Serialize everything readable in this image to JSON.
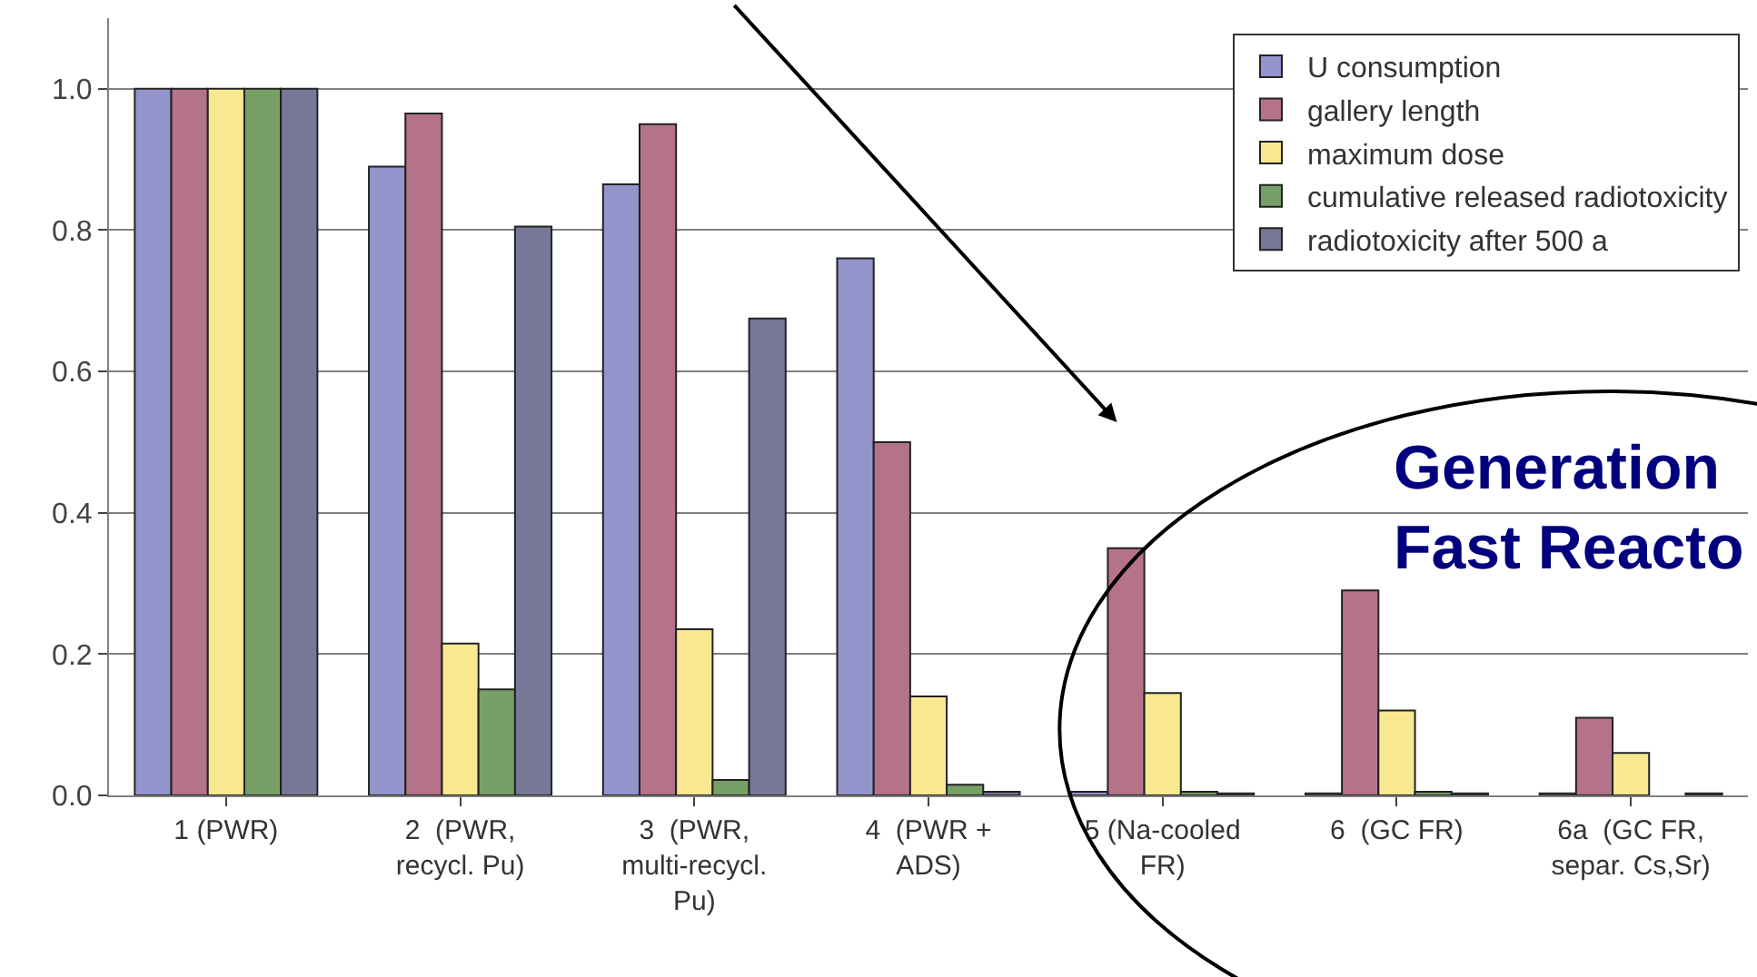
{
  "chart_data": {
    "type": "bar",
    "categories": [
      "1 (PWR)",
      "2  (PWR,\nrecycl. Pu)",
      "3  (PWR,\nmulti-recycl.\nPu)",
      "4  (PWR +\nADS)",
      "5 (Na-cooled\nFR)",
      "6  (GC FR)",
      "6a  (GC FR,\nsepar. Cs,Sr)"
    ],
    "series": [
      {
        "name": "U consumption",
        "color": "#9494cc",
        "values": [
          1.0,
          0.89,
          0.865,
          0.76,
          0.005,
          0.003,
          0.003
        ]
      },
      {
        "name": "gallery length",
        "color": "#b5738b",
        "values": [
          1.0,
          0.965,
          0.95,
          0.5,
          0.35,
          0.29,
          0.11
        ]
      },
      {
        "name": "maximum dose",
        "color": "#f8e890",
        "values": [
          1.0,
          0.215,
          0.235,
          0.14,
          0.145,
          0.12,
          0.06
        ]
      },
      {
        "name": "cumulative released radiotoxicity",
        "color": "#76a066",
        "values": [
          1.0,
          0.15,
          0.022,
          0.015,
          0.005,
          0.005,
          null
        ]
      },
      {
        "name": "radiotoxicity after 500 a",
        "color": "#777797",
        "values": [
          1.0,
          0.805,
          0.675,
          0.005,
          0.003,
          0.003,
          0.003
        ]
      }
    ],
    "ylim": [
      0,
      1.1
    ],
    "yticks": [
      {
        "value": 0,
        "label": "0.0"
      },
      {
        "value": 0.2,
        "label": "0.2"
      },
      {
        "value": 0.4,
        "label": "0.4"
      },
      {
        "value": 0.6,
        "label": "0.6"
      },
      {
        "value": 0.8,
        "label": "0.8"
      },
      {
        "value": 1.0,
        "label": "1.0"
      }
    ],
    "grid": "y",
    "legend": "top right",
    "annotations": [
      "Generation\nFast Reacto"
    ]
  }
}
